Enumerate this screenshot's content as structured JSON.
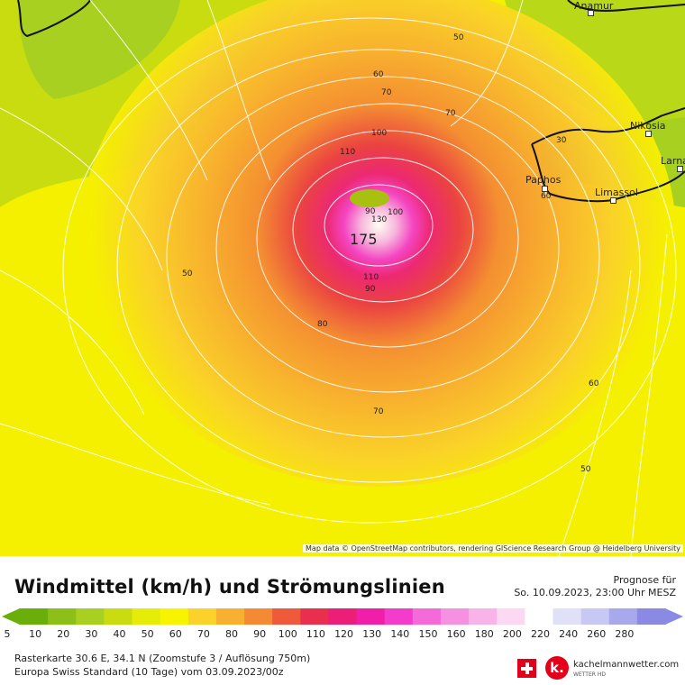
{
  "map": {
    "peak_value": "175",
    "attribution": "Map data © OpenStreetMap contributors, rendering GIScience Research Group @ Heidelberg University",
    "places": [
      {
        "name": "Anamur",
        "id": "anamur"
      },
      {
        "name": "Nikosia",
        "id": "nikosia"
      },
      {
        "name": "Larna",
        "id": "larna"
      },
      {
        "name": "Paphos",
        "id": "paphos"
      },
      {
        "name": "Limassol",
        "id": "limassol"
      }
    ],
    "contour_labels": [
      "50",
      "60",
      "70",
      "70",
      "100",
      "110",
      "90",
      "130",
      "100",
      "110",
      "90",
      "80",
      "50",
      "70",
      "60",
      "50",
      "30",
      "60"
    ]
  },
  "legend": {
    "title": "Windmittel (km/h) und Strömungslinien",
    "forecast_label": "Prognose für",
    "forecast_time": "So. 10.09.2023, 23:00 Uhr MESZ",
    "scale": [
      {
        "value": "5",
        "color": "#6aae0a"
      },
      {
        "value": "10",
        "color": "#8cc018"
      },
      {
        "value": "20",
        "color": "#a8d020"
      },
      {
        "value": "30",
        "color": "#c8dc10"
      },
      {
        "value": "40",
        "color": "#e4ec08"
      },
      {
        "value": "50",
        "color": "#f8f400"
      },
      {
        "value": "60",
        "color": "#fad22a"
      },
      {
        "value": "70",
        "color": "#f8b030"
      },
      {
        "value": "80",
        "color": "#f48a34"
      },
      {
        "value": "90",
        "color": "#ee5a3a"
      },
      {
        "value": "100",
        "color": "#ea2e4e"
      },
      {
        "value": "110",
        "color": "#ec1e78"
      },
      {
        "value": "120",
        "color": "#f01ea8"
      },
      {
        "value": "130",
        "color": "#f43ccc"
      },
      {
        "value": "140",
        "color": "#f46ad8"
      },
      {
        "value": "150",
        "color": "#f690e0"
      },
      {
        "value": "160",
        "color": "#f8b4e8"
      },
      {
        "value": "180",
        "color": "#fcd8f2"
      },
      {
        "value": "200",
        "color": "#ffffff"
      },
      {
        "value": "220",
        "color": "#e0e0f8"
      },
      {
        "value": "240",
        "color": "#c8c8f4"
      },
      {
        "value": "260",
        "color": "#a8a8ec"
      },
      {
        "value": "280",
        "color": "#8a8ae4"
      }
    ]
  },
  "info": {
    "line1": "Rasterkarte 30.6 E, 34.1 N (Zoomstufe 3 / Auflösung 750m)",
    "line2": "Europa Swiss Standard (10 Tage) vom 03.09.2023/00z"
  },
  "brand": {
    "logo_letter": "k.",
    "name": "kachelmannwetter.com",
    "sub": "WETTER HD"
  }
}
